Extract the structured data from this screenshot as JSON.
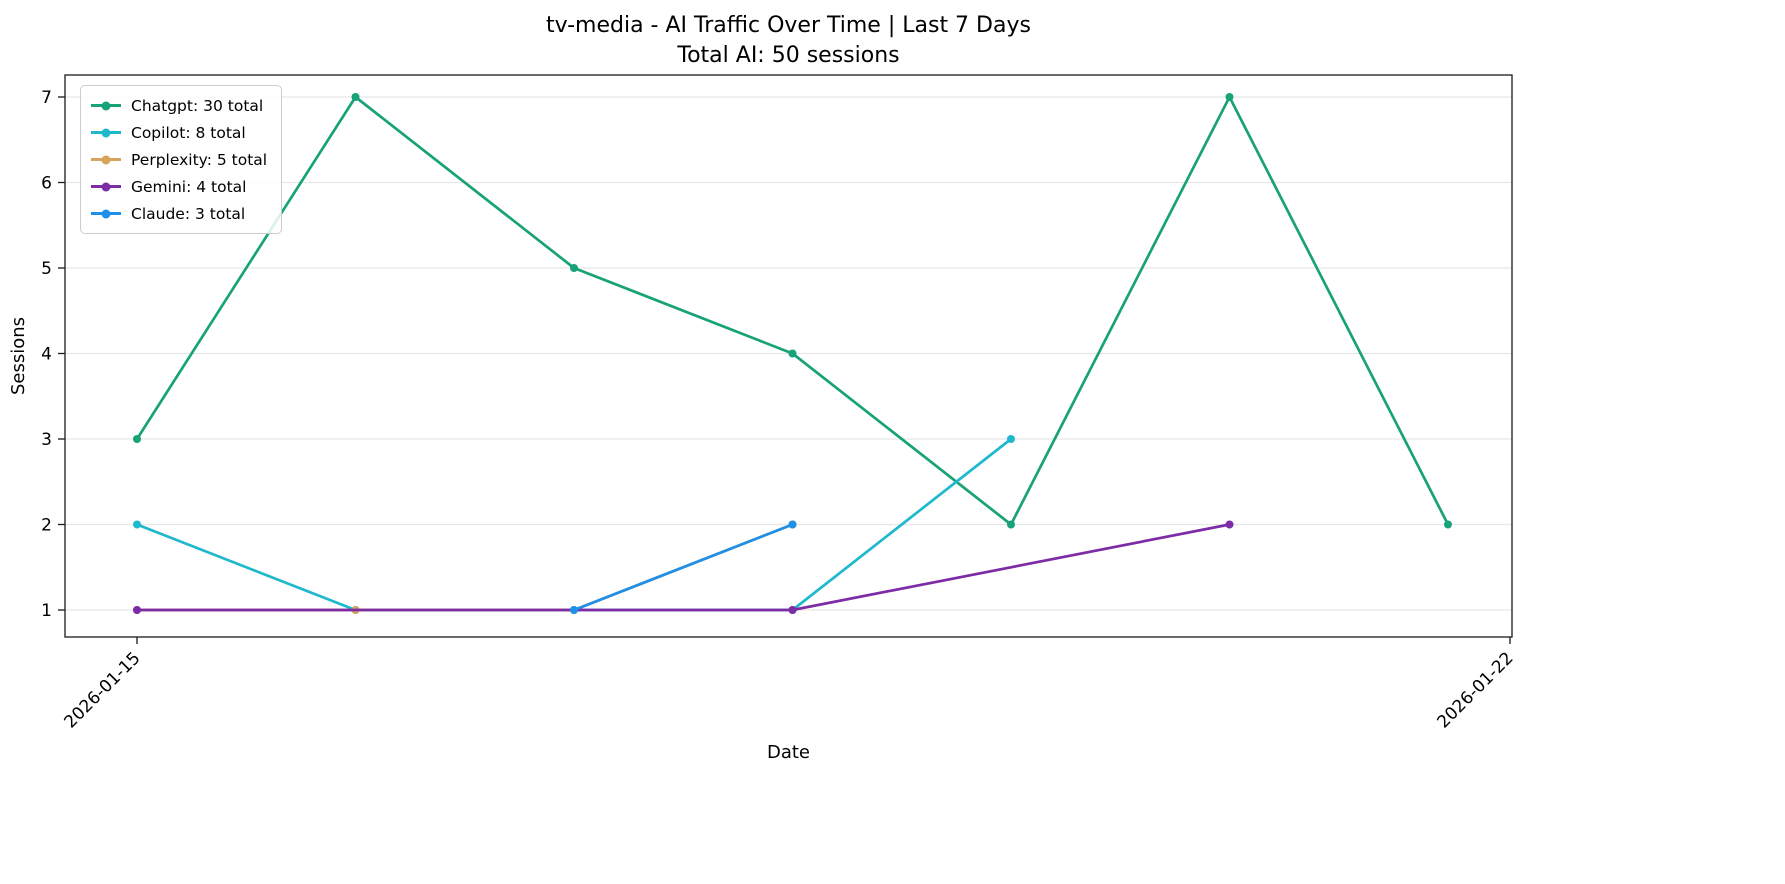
{
  "chart_data": {
    "type": "line",
    "title": "tv-media - AI Traffic Over Time | Last 7 Days",
    "subtitle": "Total AI: 50 sessions",
    "xlabel": "Date",
    "ylabel": "Sessions",
    "x_tick_labels": [
      "2026-01-15",
      "2026-01-22"
    ],
    "y_ticks": [
      1,
      2,
      3,
      4,
      5,
      6,
      7
    ],
    "grid": "horizontal",
    "legend_position": "upper-left",
    "series": [
      {
        "id": "chatgpt",
        "name": "Chatgpt",
        "total": 30,
        "label": "Chatgpt: 30 total",
        "color": "#17a277",
        "points": [
          [
            0,
            3
          ],
          [
            1,
            7
          ],
          [
            2,
            5
          ],
          [
            3,
            4
          ],
          [
            4,
            2
          ],
          [
            5,
            7
          ],
          [
            6,
            2
          ]
        ]
      },
      {
        "id": "copilot",
        "name": "Copilot",
        "total": 8,
        "label": "Copilot: 8 total",
        "color": "#1fb8cd",
        "points": [
          [
            0,
            2
          ],
          [
            1,
            1
          ],
          [
            2,
            1
          ],
          [
            3,
            1
          ],
          [
            4,
            3
          ]
        ]
      },
      {
        "id": "perplexity",
        "name": "Perplexity",
        "total": 5,
        "label": "Perplexity: 5 total",
        "color": "#d8a35a",
        "points": [
          [
            0,
            1
          ],
          [
            1,
            1
          ],
          [
            2,
            1
          ],
          [
            3,
            2
          ]
        ]
      },
      {
        "id": "gemini",
        "name": "Gemini",
        "total": 4,
        "label": "Gemini: 4 total",
        "color": "#7e2ba6",
        "points": [
          [
            0,
            1
          ],
          [
            3,
            1
          ],
          [
            5,
            2
          ]
        ]
      },
      {
        "id": "claude",
        "name": "Claude",
        "total": 3,
        "label": "Claude: 3 total",
        "color": "#1f8fe8",
        "points": [
          [
            2,
            1
          ],
          [
            3,
            2
          ]
        ]
      }
    ],
    "style": {
      "grid_color": "#e7e7e7",
      "axis_color": "#1a1a1a",
      "background": "#ffffff"
    }
  }
}
